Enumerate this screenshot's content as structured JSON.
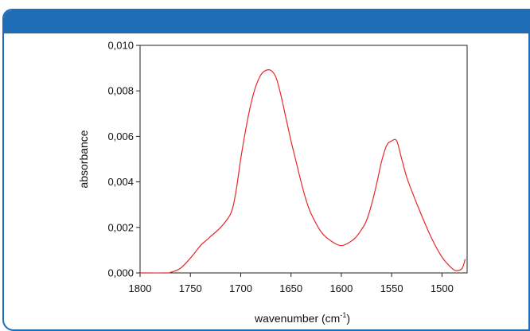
{
  "chart_data": {
    "type": "line",
    "xlabel": "wavenumber (cm",
    "xlabel_superscript": "-1",
    "xlabel_suffix": ")",
    "ylabel": "absorbance",
    "xlim": [
      1800,
      1475
    ],
    "ylim": [
      0,
      0.01
    ],
    "x_reversed": true,
    "x_ticks": [
      1800,
      1750,
      1700,
      1650,
      1600,
      1550,
      1500
    ],
    "x_tick_labels": [
      "1800",
      "1750",
      "1700",
      "1650",
      "1600",
      "1550",
      "1500"
    ],
    "y_ticks": [
      0,
      0.002,
      0.004,
      0.006,
      0.008,
      0.01
    ],
    "y_tick_labels": [
      "0,000",
      "0,002",
      "0,004",
      "0,006",
      "0,008",
      "0,010"
    ],
    "grid": false,
    "series": [
      {
        "color": "#e8262b",
        "x": [
          1800,
          1775,
          1770,
          1760,
          1750,
          1740,
          1735,
          1730,
          1720,
          1710,
          1705,
          1700,
          1695,
          1690,
          1685,
          1680,
          1675,
          1670,
          1665,
          1660,
          1655,
          1650,
          1645,
          1640,
          1635,
          1630,
          1620,
          1610,
          1600,
          1590,
          1585,
          1580,
          1575,
          1570,
          1565,
          1560,
          1555,
          1550,
          1545,
          1540,
          1535,
          1530,
          1520,
          1510,
          1500,
          1490,
          1485,
          1480,
          1477
        ],
        "y": [
          0,
          0,
          2e-05,
          0.0002,
          0.00065,
          0.0012,
          0.0014,
          0.0016,
          0.002,
          0.0026,
          0.0035,
          0.005,
          0.0063,
          0.0074,
          0.0082,
          0.0087,
          0.0089,
          0.0089,
          0.0086,
          0.0078,
          0.0068,
          0.0058,
          0.0049,
          0.004,
          0.0032,
          0.0026,
          0.0018,
          0.0014,
          0.0012,
          0.0014,
          0.0016,
          0.0019,
          0.0023,
          0.003,
          0.0039,
          0.0049,
          0.0056,
          0.0058,
          0.0058,
          0.005,
          0.0042,
          0.0036,
          0.0025,
          0.0015,
          0.0007,
          0.0002,
          0.0001,
          0.0002,
          0.0006
        ]
      }
    ]
  }
}
